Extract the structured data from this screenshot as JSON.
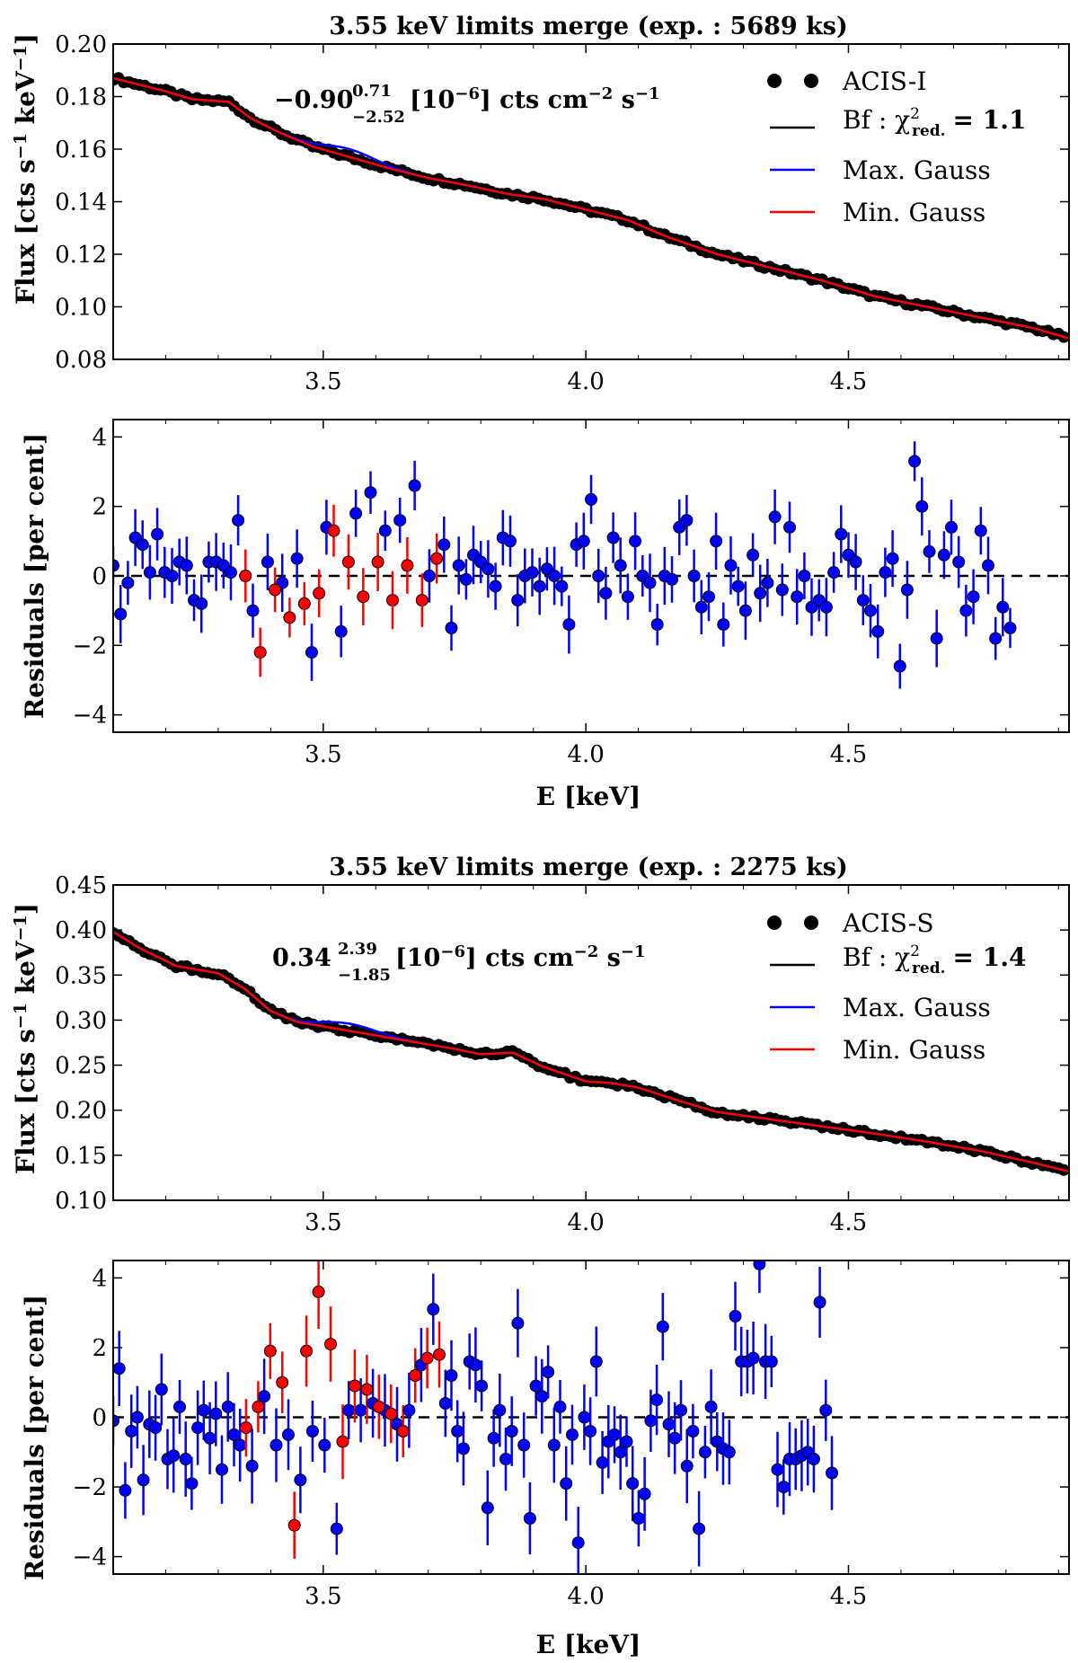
{
  "colors": {
    "data": "#000000",
    "bestfit": "#000000",
    "max": "#0000ff",
    "min": "#ff0000",
    "resid_in": "#0000ff",
    "resid_line": "#ff0000"
  },
  "panels": [
    {
      "title": "3.55 keV limits merge (exp. : 5689 ks)",
      "title_prefix": "3.55 keV limits merge (exp. : ",
      "title_bold": "5689",
      "title_suffix": " ks)",
      "detector": "ACIS-I",
      "chi2_text": "Bf : χ²red. = 1.1",
      "bf_prefix": "Bf : χ",
      "chi2_sup": "2",
      "chi2_sub": "red.",
      "chi2_value": "= 1.1",
      "annotation_value": "−0.90",
      "annotation_upper": "0.71",
      "annotation_lower": "−2.52",
      "annotation_unit": "[10⁻⁶] cts cm⁻² s⁻¹",
      "unit_prefix": "[10",
      "unit_exp": "−6",
      "unit_mid": "] cts cm",
      "unit_exp2": "−2",
      "unit_mid2": " s",
      "unit_exp3": "−1"
    },
    {
      "title": "3.55 keV limits merge (exp. : 2275 ks)",
      "title_prefix": "3.55 keV limits merge (exp. : ",
      "title_bold": "2275",
      "title_suffix": " ks)",
      "detector": "ACIS-S",
      "chi2_text": "Bf : χ²red. = 1.4",
      "bf_prefix": "Bf : χ",
      "chi2_sup": "2",
      "chi2_sub": "red.",
      "chi2_value": "= 1.4",
      "annotation_value": "0.34",
      "annotation_upper": "2.39",
      "annotation_lower": "−1.85",
      "annotation_unit": "[10⁻⁶] cts cm⁻² s⁻¹",
      "unit_prefix": "[10",
      "unit_exp": "−6",
      "unit_mid": "] cts cm",
      "unit_exp2": "−2",
      "unit_mid2": " s",
      "unit_exp3": "−1"
    }
  ],
  "legend": {
    "max_label": "Max. Gauss",
    "min_label": "Min. Gauss"
  },
  "labels": {
    "flux_ylabel": "Flux [cts s⁻¹ keV⁻¹]",
    "flux_ylabel_a": "Flux [cts s",
    "flux_ylabel_e1": "−1",
    "flux_ylabel_b": " keV",
    "flux_ylabel_e2": "−1",
    "flux_ylabel_c": "]",
    "resid_ylabel": "Residuals [per cent]",
    "xlabel": "E [keV]"
  },
  "chart_data": [
    {
      "type": "scatter",
      "panel": "ACIS-I flux",
      "title": "3.55 keV limits merge (exp. : 5689 ks)",
      "xlabel": "",
      "ylabel": "Flux [cts s⁻¹ keV⁻¹]",
      "xlim": [
        3.1,
        4.92
      ],
      "ylim": [
        0.08,
        0.2
      ],
      "xticks": [
        "3.5",
        "4.0",
        "4.5"
      ],
      "yticks": [
        "0.08",
        "0.10",
        "0.12",
        "0.14",
        "0.16",
        "0.18",
        "0.20"
      ],
      "model_knots": {
        "x": [
          3.1,
          3.2,
          3.25,
          3.32,
          3.36,
          3.42,
          3.48,
          3.55,
          3.62,
          3.7,
          3.78,
          3.85,
          3.92,
          4.0,
          4.08,
          4.15,
          4.25,
          4.35,
          4.45,
          4.55,
          4.65,
          4.75,
          4.85,
          4.92
        ],
        "y": [
          0.187,
          0.182,
          0.179,
          0.178,
          0.172,
          0.166,
          0.161,
          0.157,
          0.153,
          0.149,
          0.146,
          0.143,
          0.141,
          0.137,
          0.133,
          0.127,
          0.12,
          0.115,
          0.11,
          0.104,
          0.1,
          0.096,
          0.092,
          0.088
        ]
      },
      "max_gauss": {
        "center": 3.55,
        "amp": 0.003,
        "sigma": 0.05
      },
      "series": [
        {
          "name": "ACIS-I",
          "x_start": 3.1,
          "x_step": 0.01,
          "n": 182
        }
      ]
    },
    {
      "type": "scatter",
      "panel": "ACIS-I residuals",
      "xlabel": "E [keV]",
      "ylabel": "Residuals [per cent]",
      "xlim": [
        3.1,
        4.92
      ],
      "ylim": [
        -4.5,
        4.5
      ],
      "xticks": [
        "3.5",
        "4.0",
        "4.5"
      ],
      "yticks": [
        "−4",
        "−2",
        "0",
        "2",
        "4"
      ],
      "red_range": [
        3.35,
        3.74
      ],
      "x_step": 0.014,
      "errbar": 0.7,
      "values": [
        0.3,
        -1.1,
        -0.2,
        1.1,
        0.9,
        0.1,
        1.2,
        0.1,
        0.0,
        0.4,
        0.3,
        -0.7,
        -0.8,
        0.4,
        0.4,
        0.3,
        0.1,
        1.6,
        0.0,
        -1.0,
        -2.2,
        0.4,
        -0.4,
        -0.2,
        -1.2,
        0.5,
        -0.8,
        -2.2,
        -0.5,
        1.4,
        1.3,
        -1.6,
        0.4,
        1.8,
        -0.6,
        2.4,
        0.4,
        1.3,
        -0.7,
        1.6,
        0.3,
        2.6,
        -0.7,
        0.0,
        0.5,
        0.9,
        -1.5,
        0.3,
        -0.1,
        0.6,
        0.4,
        0.2,
        -0.3,
        1.1,
        1.0,
        -0.7,
        0.0,
        0.1,
        -0.3,
        0.2,
        0.0,
        -0.3,
        -1.4,
        0.9,
        1.0,
        2.2,
        0.0,
        -0.5,
        1.1,
        0.3,
        -0.6,
        1.0,
        0.0,
        -0.2,
        -1.4,
        0.0,
        -0.1,
        1.4,
        1.6,
        0.0,
        -0.9,
        -0.6,
        1.0,
        -1.4,
        0.3,
        -0.3,
        -1.0,
        0.6,
        -0.5,
        -0.2,
        1.7,
        -0.4,
        1.4,
        -0.6,
        0.0,
        -0.9,
        -0.7,
        -0.9,
        0.1,
        1.2,
        0.6,
        0.4,
        -0.7,
        -1.0,
        -1.6,
        0.1,
        0.5,
        -2.6,
        -0.4,
        3.3,
        2.0,
        0.7,
        -1.8,
        0.6,
        1.4,
        0.4,
        -1.0,
        -0.6,
        1.3,
        0.3,
        -1.8,
        -0.9,
        -1.5
      ]
    },
    {
      "type": "scatter",
      "panel": "ACIS-S flux",
      "title": "3.55 keV limits merge (exp. : 2275 ks)",
      "xlabel": "",
      "ylabel": "Flux [cts s⁻¹ keV⁻¹]",
      "xlim": [
        3.1,
        4.92
      ],
      "ylim": [
        0.1,
        0.45
      ],
      "xticks": [
        "3.5",
        "4.0",
        "4.5"
      ],
      "yticks": [
        "0.10",
        "0.15",
        "0.20",
        "0.25",
        "0.30",
        "0.35",
        "0.40",
        "0.45"
      ],
      "model_knots": {
        "x": [
          3.1,
          3.15,
          3.22,
          3.3,
          3.35,
          3.4,
          3.45,
          3.55,
          3.65,
          3.75,
          3.8,
          3.86,
          3.92,
          4.0,
          4.05,
          4.1,
          4.18,
          4.25,
          4.35,
          4.45,
          4.55,
          4.65,
          4.75,
          4.85,
          4.92
        ],
        "y": [
          0.398,
          0.38,
          0.36,
          0.352,
          0.335,
          0.31,
          0.298,
          0.288,
          0.278,
          0.268,
          0.262,
          0.264,
          0.248,
          0.232,
          0.23,
          0.225,
          0.21,
          0.198,
          0.19,
          0.182,
          0.174,
          0.165,
          0.155,
          0.142,
          0.132
        ]
      },
      "max_gauss": {
        "center": 3.55,
        "amp": 0.008,
        "sigma": 0.05
      },
      "series": [
        {
          "name": "ACIS-S",
          "x_start": 3.1,
          "x_step": 0.01,
          "n": 182
        }
      ]
    },
    {
      "type": "scatter",
      "panel": "ACIS-S residuals",
      "xlabel": "E [keV]",
      "ylabel": "Residuals [per cent]",
      "xlim": [
        3.1,
        4.92
      ],
      "ylim": [
        -4.5,
        4.5
      ],
      "xticks": [
        "3.5",
        "4.0",
        "4.5"
      ],
      "yticks": [
        "−4",
        "−2",
        "0",
        "2",
        "4"
      ],
      "red_range": [
        3.35,
        3.74
      ],
      "x_step": 0.0115,
      "errbar": 0.9,
      "values": [
        -0.1,
        1.4,
        -2.1,
        -0.4,
        0.0,
        -1.8,
        -0.2,
        -0.3,
        0.8,
        -1.2,
        -1.1,
        0.3,
        -1.2,
        -1.9,
        -0.3,
        0.2,
        -0.6,
        0.1,
        -1.5,
        0.3,
        -0.5,
        -0.8,
        -0.3,
        -1.4,
        0.3,
        0.6,
        1.9,
        -0.8,
        1.0,
        -0.5,
        -3.1,
        -1.8,
        1.9,
        -0.4,
        3.6,
        -0.8,
        2.1,
        -3.2,
        -0.7,
        0.2,
        0.9,
        0.2,
        0.8,
        0.4,
        0.3,
        0.2,
        0.1,
        -0.2,
        -0.4,
        0.2,
        1.2,
        1.5,
        1.7,
        3.1,
        1.8,
        0.4,
        1.2,
        -0.4,
        -0.9,
        1.6,
        1.5,
        0.9,
        -2.6,
        -0.6,
        0.2,
        -1.2,
        -0.4,
        2.7,
        -0.8,
        -2.9,
        0.9,
        0.6,
        1.3,
        -0.8,
        0.3,
        -1.9,
        -0.5,
        -3.6,
        0.0,
        -0.4,
        1.6,
        -1.3,
        -0.7,
        -0.5,
        -1.0,
        -0.7,
        -1.9,
        -2.9,
        -2.2,
        -0.1,
        0.5,
        2.6,
        -0.2,
        -0.6,
        0.2,
        -1.4,
        -0.4,
        -3.2,
        -1.0,
        0.3,
        -0.7,
        -0.9,
        -1.0,
        2.9,
        1.6,
        1.6,
        1.7,
        4.4,
        1.6,
        1.6,
        -1.5,
        -2.0,
        -1.2,
        -1.2,
        -1.1,
        -1.0,
        -1.2,
        3.3,
        0.2,
        -1.6
      ]
    }
  ]
}
